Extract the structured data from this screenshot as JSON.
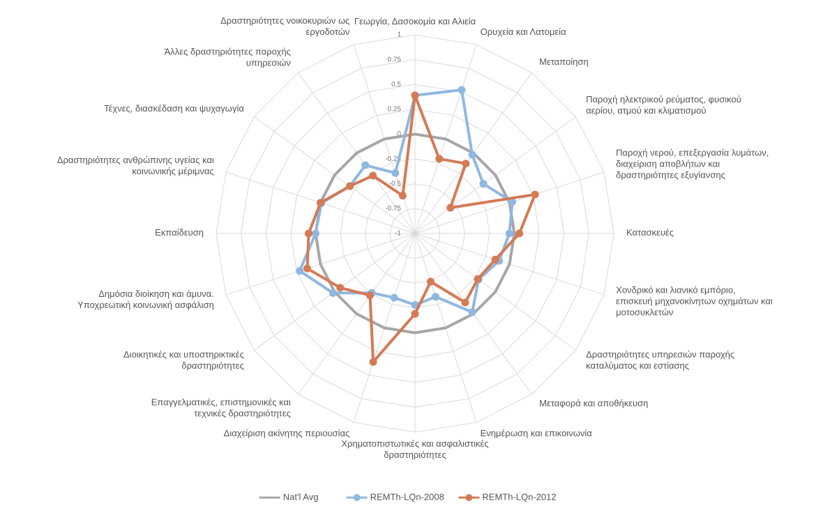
{
  "chart_data": {
    "type": "radar",
    "categories": [
      "Γεωργία, Δασοκομία και Αλιεία",
      "Ορυχεία και Λατομεία",
      "Μεταποίηση",
      "Παροχή ηλεκτρικού ρεύματος, φυσικού αερίου, ατμού και κλιματισμού",
      "Παροχή νερού, επεξεργασία λυμάτων, διαχείριση αποβλήτων και δραστηριότητες εξυγίανσης",
      "Κατασκευές",
      "Χονδρικό και λιανικό εμπόριο, επισκευή μηχανοκίνητων οχημάτων και μοτοσυκλετών",
      "Δραστηριότητες υπηρεσιών παροχής καταλύματος και εστίασης",
      "Μεταφορά και αποθήκευση",
      "Ενημέρωση και επικοινωνία",
      "Χρηματοπιστωτικές και ασφαλιστικές δραστηριότητες",
      "Διαχείριση ακίνητης περιουσίας",
      "Επαγγελματικές, επιστημονικές και τεχνικές δραστηριότητες",
      "Διοικητικές και υποστηρικτικές δραστηριότητες",
      "Δημόσια διοίκηση και άμυνα. Υποχρεωτική κοινωνική ασφάλιση",
      "Εκπαίδευση",
      "Δραστηριότητες ανθρώπινης υγείας και κοινωνικής μέριμνας",
      "Τέχνες, διασκέδαση και ψυχαγωγία",
      "Άλλες δραστηριότητες παροχής υπηρεσιών",
      "Δραστηριότητες νοικοκυριών ως εργοδοτών"
    ],
    "series": [
      {
        "name": "Nat'l Avg",
        "color": "#a6a6a6",
        "markers": false,
        "values": [
          0,
          0,
          0,
          0,
          0,
          0,
          0,
          0,
          0,
          0,
          0,
          0,
          0,
          0,
          0,
          0,
          0,
          0,
          0,
          0
        ]
      },
      {
        "name": "REMTh-LQn-2008",
        "color": "#8fb8e0",
        "markers": true,
        "values": [
          0.39,
          0.52,
          -0.02,
          -0.15,
          0.03,
          -0.05,
          -0.11,
          -0.21,
          -0.02,
          -0.33,
          -0.28,
          -0.32,
          -0.26,
          0.02,
          0.22,
          0,
          -0.01,
          -0.19,
          -0.15,
          -0.36
        ]
      },
      {
        "name": "REMTh-LQn-2012",
        "color": "#d47a55",
        "markers": true,
        "values": [
          0.39,
          -0.21,
          -0.13,
          -0.56,
          0.27,
          0.05,
          -0.15,
          -0.22,
          -0.14,
          -0.49,
          -0.19,
          0.36,
          -0.23,
          -0.07,
          0.14,
          0.07,
          0,
          -0.19,
          -0.28,
          -0.6
        ]
      }
    ],
    "ylim": [
      -1,
      1
    ],
    "yticks": [
      -1,
      -0.75,
      -0.5,
      -0.25,
      0,
      0.25,
      0.5,
      0.75,
      1
    ],
    "grid": true
  }
}
